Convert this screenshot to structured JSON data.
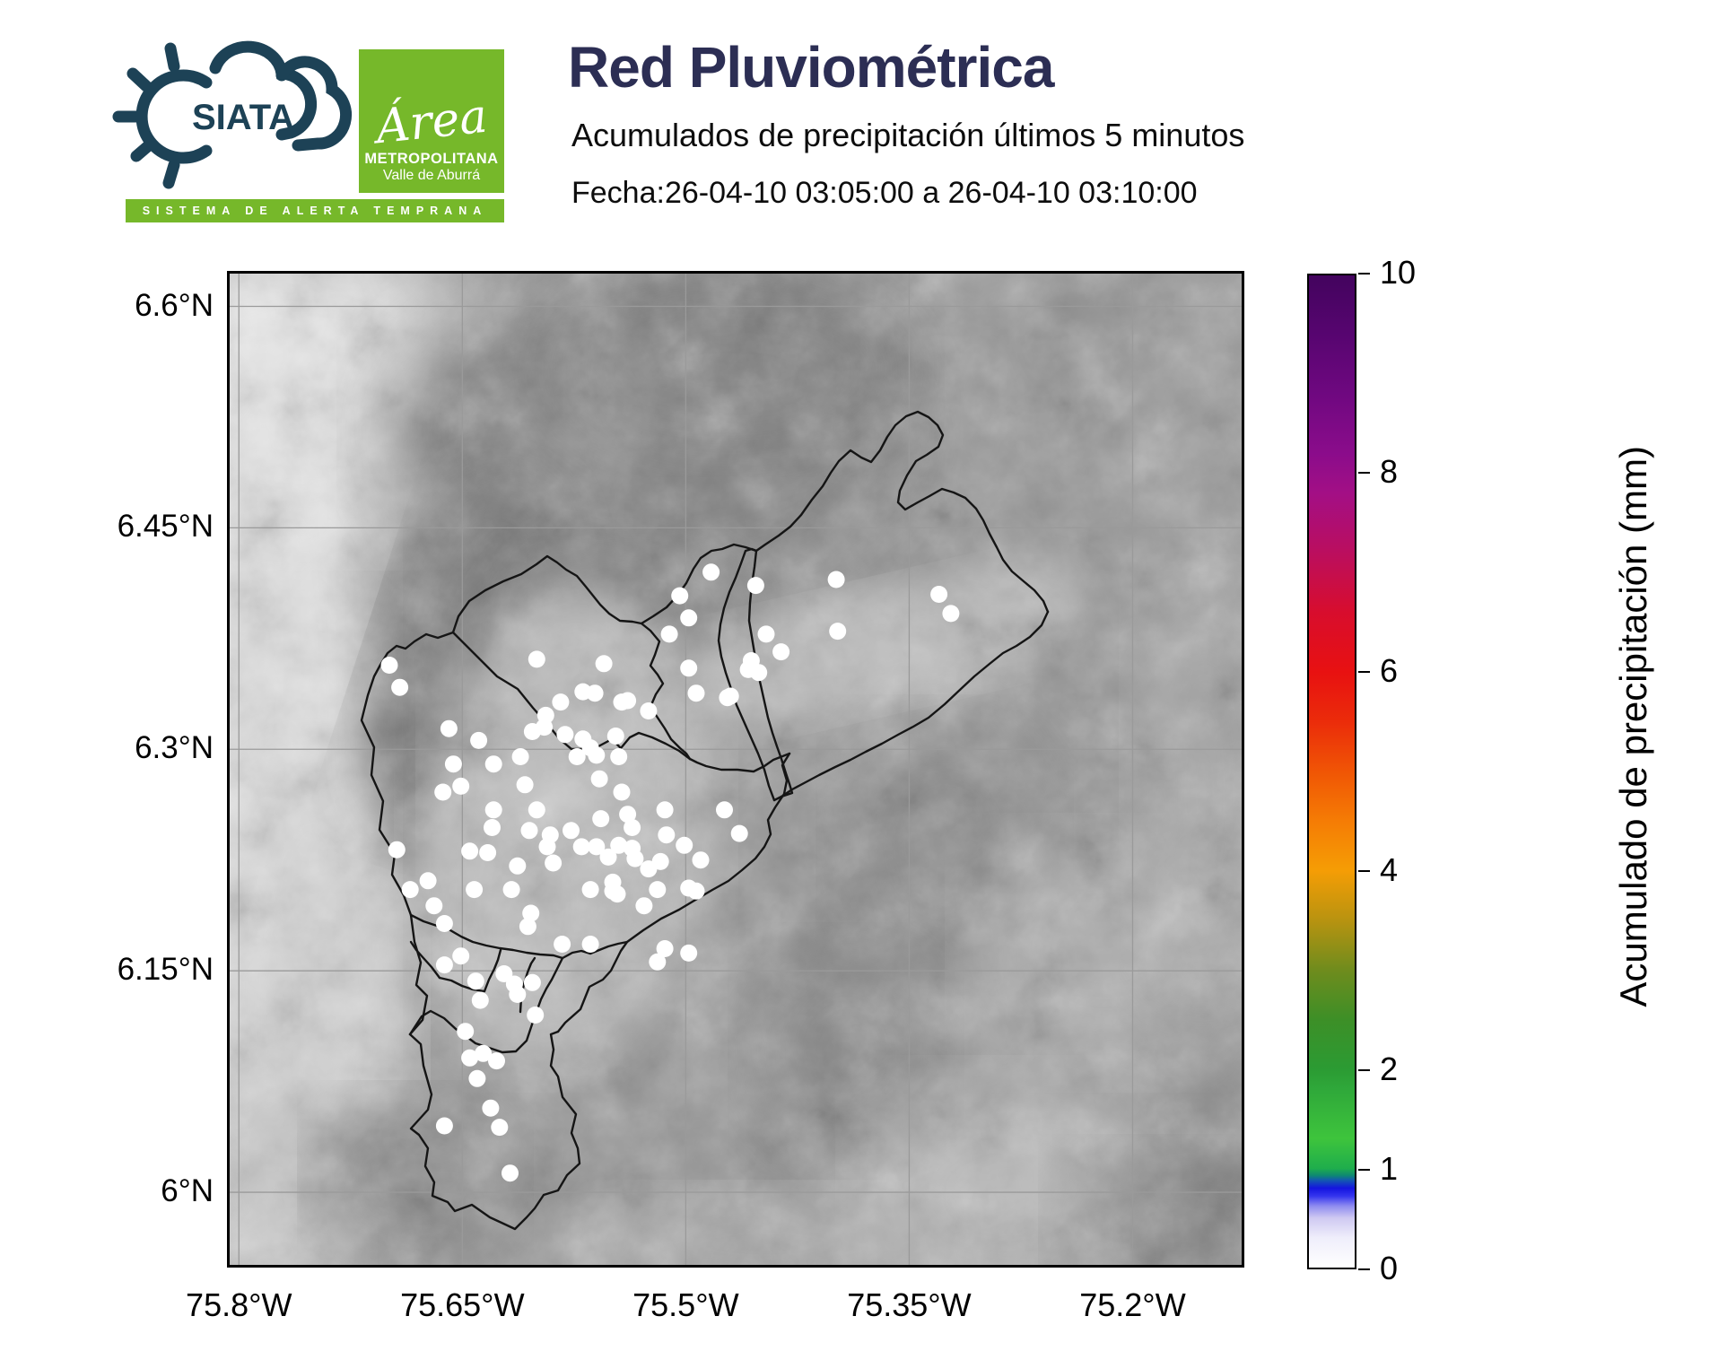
{
  "header": {
    "siata": "SIATA",
    "banner": "SISTEMA DE ALERTA TEMPRANA",
    "area_script": "Área",
    "area_line2": "METROPOLITANA",
    "area_line3": "Valle de Aburrá",
    "title": "Red Pluviométrica",
    "subtitle": "Acumulados de precipitación últimos 5 minutos",
    "date_line": "Fecha:26-04-10 03:05:00 a 26-04-10 03:10:00"
  },
  "colors": {
    "brand_green": "#76b82a",
    "brand_navy": "#1d4256",
    "title_navy": "#2c2e54",
    "terrain_base": "#8d8d8d",
    "boundary": "#151515",
    "gridline": "#9a9a9a",
    "station_dot": "#ffffff"
  },
  "chart_data": {
    "type": "scatter",
    "title": "Red Pluviométrica",
    "subtitle": "Acumulados de precipitación últimos 5 minutos",
    "period": "26-04-10 03:05:00 a 26-04-10 03:10:00",
    "grid": true,
    "axes": {
      "lon_left_w": 75.808,
      "lon_right_w": 75.125,
      "lat_top_n": 6.624,
      "lat_bottom_n": 5.949,
      "lon_ticks": [
        {
          "label": "75.8°W",
          "value": 75.8
        },
        {
          "label": "75.65°W",
          "value": 75.65
        },
        {
          "label": "75.5°W",
          "value": 75.5
        },
        {
          "label": "75.35°W",
          "value": 75.35
        },
        {
          "label": "75.2°W",
          "value": 75.2
        }
      ],
      "lat_ticks": [
        {
          "label": "6.6°N",
          "value": 6.6
        },
        {
          "label": "6.45°N",
          "value": 6.45
        },
        {
          "label": "6.3°N",
          "value": 6.3
        },
        {
          "label": "6.15°N",
          "value": 6.15
        },
        {
          "label": "6°N",
          "value": 6.0
        }
      ]
    },
    "colorbar": {
      "label": "Acumulado de precipitación (mm)",
      "range": [
        0,
        10
      ],
      "tick_values": [
        0,
        1,
        2,
        4,
        6,
        8,
        10
      ],
      "tick_labels": [
        "0",
        "1",
        "2",
        "4",
        "6",
        "8",
        "10"
      ],
      "stops": [
        {
          "v": 0.0,
          "color": "#ffffff"
        },
        {
          "v": 0.3,
          "color": "#efeefb"
        },
        {
          "v": 0.5,
          "color": "#cfc9f2"
        },
        {
          "v": 0.62,
          "color": "#8f8cf0"
        },
        {
          "v": 0.72,
          "color": "#3535ee"
        },
        {
          "v": 0.8,
          "color": "#1414e0"
        },
        {
          "v": 0.88,
          "color": "#1358b0"
        },
        {
          "v": 0.93,
          "color": "#0e8a70"
        },
        {
          "v": 1.0,
          "color": "#1fae4c"
        },
        {
          "v": 1.3,
          "color": "#3ec43c"
        },
        {
          "v": 1.8,
          "color": "#2fa83a"
        },
        {
          "v": 2.0,
          "color": "#2b9b33"
        },
        {
          "v": 2.5,
          "color": "#3d8f27"
        },
        {
          "v": 3.0,
          "color": "#6f8c1d"
        },
        {
          "v": 3.5,
          "color": "#b89310"
        },
        {
          "v": 4.0,
          "color": "#f59d05"
        },
        {
          "v": 4.5,
          "color": "#f57c05"
        },
        {
          "v": 5.0,
          "color": "#f05505"
        },
        {
          "v": 5.5,
          "color": "#eb2c0a"
        },
        {
          "v": 6.0,
          "color": "#e81111"
        },
        {
          "v": 6.6,
          "color": "#d80d2d"
        },
        {
          "v": 7.2,
          "color": "#bb0e5e"
        },
        {
          "v": 7.8,
          "color": "#a30f85"
        },
        {
          "v": 8.2,
          "color": "#8b0c8b"
        },
        {
          "v": 8.8,
          "color": "#6f0880"
        },
        {
          "v": 9.4,
          "color": "#570570"
        },
        {
          "v": 10.0,
          "color": "#43045e"
        }
      ]
    },
    "all_station_values_mm": 0,
    "stations_lon_lat": [
      [
        75.483,
        6.42
      ],
      [
        75.453,
        6.411
      ],
      [
        75.399,
        6.415
      ],
      [
        75.33,
        6.405
      ],
      [
        75.322,
        6.392
      ],
      [
        75.398,
        6.38
      ],
      [
        75.504,
        6.404
      ],
      [
        75.498,
        6.389
      ],
      [
        75.511,
        6.378
      ],
      [
        75.446,
        6.378
      ],
      [
        75.436,
        6.366
      ],
      [
        75.456,
        6.36
      ],
      [
        75.458,
        6.354
      ],
      [
        75.451,
        6.352
      ],
      [
        75.47,
        6.336
      ],
      [
        75.498,
        6.355
      ],
      [
        75.472,
        6.335
      ],
      [
        75.493,
        6.338
      ],
      [
        75.555,
        6.358
      ],
      [
        75.6,
        6.361
      ],
      [
        75.699,
        6.357
      ],
      [
        75.692,
        6.342
      ],
      [
        75.603,
        6.312
      ],
      [
        75.639,
        6.306
      ],
      [
        75.656,
        6.29
      ],
      [
        75.629,
        6.29
      ],
      [
        75.611,
        6.295
      ],
      [
        75.594,
        6.323
      ],
      [
        75.584,
        6.332
      ],
      [
        75.569,
        6.339
      ],
      [
        75.561,
        6.338
      ],
      [
        75.581,
        6.31
      ],
      [
        75.569,
        6.307
      ],
      [
        75.573,
        6.295
      ],
      [
        75.56,
        6.296
      ],
      [
        75.547,
        6.309
      ],
      [
        75.543,
        6.332
      ],
      [
        75.539,
        6.333
      ],
      [
        75.525,
        6.326
      ],
      [
        75.659,
        6.314
      ],
      [
        75.663,
        6.271
      ],
      [
        75.651,
        6.275
      ],
      [
        75.608,
        6.276
      ],
      [
        75.564,
        6.301
      ],
      [
        75.558,
        6.28
      ],
      [
        75.545,
        6.295
      ],
      [
        75.543,
        6.271
      ],
      [
        75.595,
        6.315
      ],
      [
        75.514,
        6.259
      ],
      [
        75.513,
        6.242
      ],
      [
        75.501,
        6.235
      ],
      [
        75.539,
        6.256
      ],
      [
        75.536,
        6.247
      ],
      [
        75.557,
        6.253
      ],
      [
        75.6,
        6.259
      ],
      [
        75.605,
        6.245
      ],
      [
        75.591,
        6.242
      ],
      [
        75.629,
        6.259
      ],
      [
        75.63,
        6.247
      ],
      [
        75.645,
        6.231
      ],
      [
        75.633,
        6.23
      ],
      [
        75.613,
        6.221
      ],
      [
        75.593,
        6.234
      ],
      [
        75.589,
        6.223
      ],
      [
        75.577,
        6.245
      ],
      [
        75.57,
        6.234
      ],
      [
        75.56,
        6.234
      ],
      [
        75.552,
        6.227
      ],
      [
        75.545,
        6.235
      ],
      [
        75.536,
        6.233
      ],
      [
        75.534,
        6.226
      ],
      [
        75.525,
        6.219
      ],
      [
        75.517,
        6.224
      ],
      [
        75.49,
        6.225
      ],
      [
        75.474,
        6.259
      ],
      [
        75.464,
        6.243
      ],
      [
        75.694,
        6.232
      ],
      [
        75.498,
        6.206
      ],
      [
        75.493,
        6.204
      ],
      [
        75.549,
        6.204
      ],
      [
        75.564,
        6.205
      ],
      [
        75.617,
        6.205
      ],
      [
        75.642,
        6.205
      ],
      [
        75.685,
        6.205
      ],
      [
        75.673,
        6.211
      ],
      [
        75.669,
        6.194
      ],
      [
        75.662,
        6.182
      ],
      [
        75.604,
        6.189
      ],
      [
        75.606,
        6.18
      ],
      [
        75.549,
        6.21
      ],
      [
        75.546,
        6.202
      ],
      [
        75.519,
        6.205
      ],
      [
        75.528,
        6.194
      ],
      [
        75.583,
        6.168
      ],
      [
        75.564,
        6.168
      ],
      [
        75.514,
        6.165
      ],
      [
        75.498,
        6.162
      ],
      [
        75.662,
        6.154
      ],
      [
        75.651,
        6.16
      ],
      [
        75.641,
        6.143
      ],
      [
        75.638,
        6.13
      ],
      [
        75.622,
        6.148
      ],
      [
        75.615,
        6.141
      ],
      [
        75.613,
        6.134
      ],
      [
        75.603,
        6.142
      ],
      [
        75.601,
        6.12
      ],
      [
        75.519,
        6.156
      ],
      [
        75.645,
        6.091
      ],
      [
        75.636,
        6.094
      ],
      [
        75.627,
        6.089
      ],
      [
        75.64,
        6.077
      ],
      [
        75.631,
        6.057
      ],
      [
        75.625,
        6.044
      ],
      [
        75.662,
        6.045
      ],
      [
        75.618,
        6.013
      ],
      [
        75.648,
        6.109
      ]
    ]
  }
}
